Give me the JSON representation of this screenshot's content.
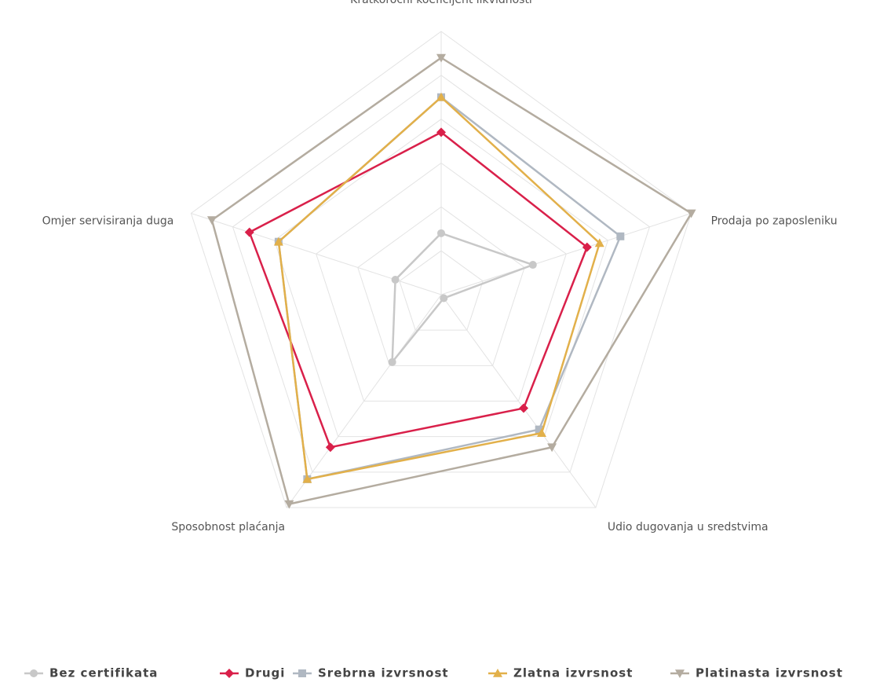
{
  "chart_data": {
    "type": "radar",
    "categories": [
      "Kratkoročni koeficijent likvidnosti",
      "Prodaja po zaposleniku",
      "Udio dugovanja u sredstvima",
      "Sposobnost plaćanja",
      "Omjer servisiranja duga"
    ],
    "rlim": [
      0,
      6
    ],
    "rticks": [
      1,
      2,
      3,
      4,
      5,
      6
    ],
    "grid": true,
    "legend": "bottom",
    "series": [
      {
        "name": "Bez certifikata",
        "color": "#c8c8c8",
        "marker": "circle",
        "values": [
          1.4,
          2.2,
          0.1,
          1.9,
          1.1
        ]
      },
      {
        "name": "Drugi",
        "color": "#d9204a",
        "marker": "diamond",
        "values": [
          3.7,
          3.5,
          3.2,
          4.3,
          4.6
        ]
      },
      {
        "name": "Srebrna izvrsnost",
        "color": "#b0b8c2",
        "marker": "square",
        "values": [
          4.5,
          4.3,
          3.8,
          5.2,
          3.9
        ]
      },
      {
        "name": "Zlatna izvrsnost",
        "color": "#e2b04a",
        "marker": "triangle",
        "values": [
          4.5,
          3.8,
          3.9,
          5.2,
          3.9
        ]
      },
      {
        "name": "Platinasta izvrsnost",
        "color": "#b4aca0",
        "marker": "triangle-down",
        "values": [
          5.4,
          6.0,
          4.3,
          5.9,
          5.5
        ]
      }
    ]
  }
}
